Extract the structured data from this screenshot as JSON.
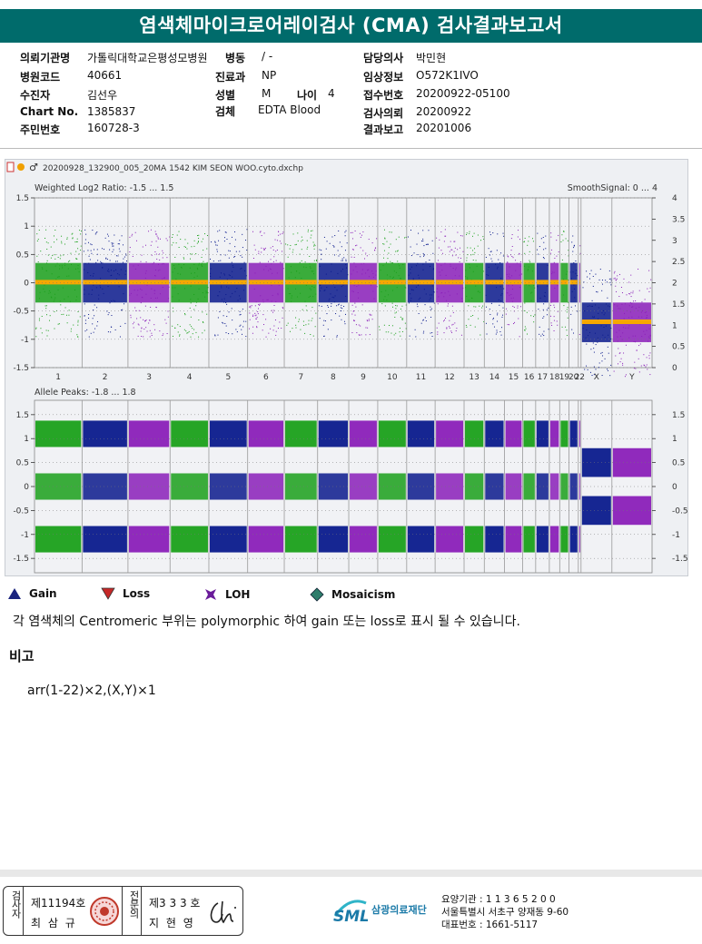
{
  "title": "염색체마이크로어레이검사 (CMA) 검사결과보고서",
  "info": {
    "institution_label": "의뢰기관명",
    "institution_value": "가톨릭대학교은평성모병원",
    "ward_label": "병동",
    "ward_value": "/ -",
    "doctor_label": "담당의사",
    "doctor_value": "박민현",
    "hospcode_label": "병원코드",
    "hospcode_value": "40661",
    "dept_label": "진료과",
    "dept_value": "NP",
    "clinical_label": "임상정보",
    "clinical_value": "O572K1IVO",
    "receiver_label": "수진자",
    "receiver_value": "김선우",
    "sex_label": "성별",
    "sex_value": "M",
    "age_label": "나이",
    "age_value": "4",
    "accession_label": "접수번호",
    "accession_value": "20200922-05100",
    "chart_label": "Chart No.",
    "chart_value": "1385837",
    "specimen_label": "검체",
    "specimen_value": "EDTA Blood",
    "request_label": "검사의뢰",
    "request_value": "20200922",
    "id_label": "주민번호",
    "id_value": "160728-3",
    "report_label": "결과보고",
    "report_value": "20201006"
  },
  "plot": {
    "filename": "20200928_132900_005_20MA 1542 KIM SEON WOO.cyto.dxchp",
    "top_title": "Weighted Log2 Ratio: -1.5 ... 1.5",
    "top_right": "SmoothSignal: 0 ... 4",
    "top_left_ticks": [
      "1.5",
      "1",
      "0.5",
      "0",
      "-0.5",
      "-1",
      "-1.5"
    ],
    "top_right_ticks": [
      "4",
      "3.5",
      "3",
      "2.5",
      "2",
      "1.5",
      "1",
      "0.5",
      "0"
    ],
    "chromosomes": [
      "1",
      "2",
      "3",
      "4",
      "5",
      "6",
      "7",
      "8",
      "9",
      "10",
      "11",
      "12",
      "13",
      "14",
      "15",
      "16",
      "17",
      "18",
      "19",
      "20",
      "22",
      "X",
      "Y"
    ],
    "bottom_title": "Allele Peaks: -1.8 ... 1.8",
    "bottom_ticks": [
      "1.5",
      "1",
      "0.5",
      "0",
      "-0.5",
      "-1",
      "-1.5"
    ],
    "colors": {
      "green": "#1aa01a",
      "blue": "#0a1a8c",
      "purple": "#8a1fb8",
      "orange": "#f6a800",
      "background": "#eef0f3"
    }
  },
  "legend": [
    {
      "label": "Gain",
      "icon": "gain-icon",
      "color": "#1a237e"
    },
    {
      "label": "Loss",
      "icon": "loss-icon",
      "color": "#c62828"
    },
    {
      "label": "LOH",
      "icon": "loh-icon",
      "color": "#6a1b9a"
    },
    {
      "label": "Mosaicism",
      "icon": "mosaicism-icon",
      "color": "#2e7d6b"
    }
  ],
  "note": "각 염색체의 Centromeric 부위는 polymorphic 하여 gain 또는 loss로 표시 될 수 있습니다.",
  "remark_header": "비고",
  "remark_value": "arr(1-22)×2,(X,Y)×1",
  "signatures": {
    "left_title": "검사자",
    "left_number": "제11194호",
    "left_name": "최 삼 규",
    "right_title": "전문의",
    "right_number": "제3 3 3 호",
    "right_name": "지 현 영"
  },
  "footer": {
    "logo": "SML",
    "org_name": "삼광의료재단",
    "code_line": "요양기관 : 1 1 3 6 5 2 0 0",
    "address_line": "서울특별시 서초구 양재동 9-60",
    "phone_line": "대표번호 : 1661-5117"
  }
}
